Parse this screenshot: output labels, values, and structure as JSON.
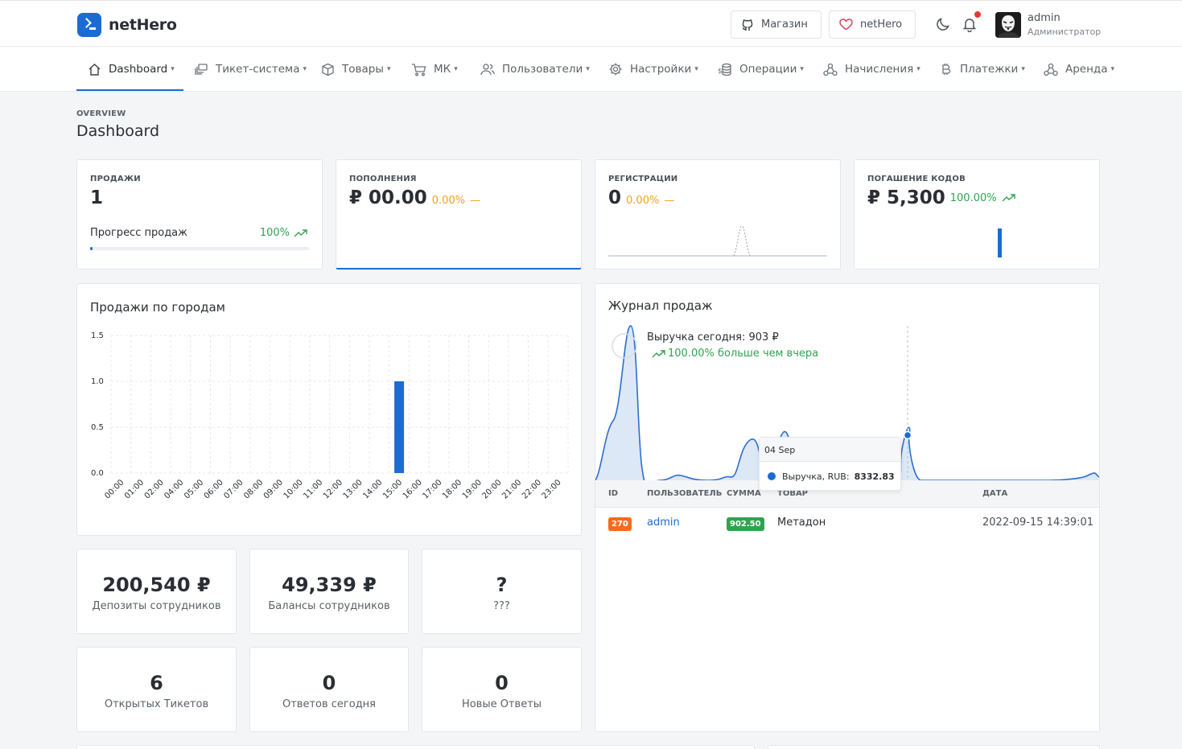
{
  "brand": {
    "name": "netHero"
  },
  "topbar": {
    "shop_label": "Магазин",
    "nethero_label": "netHero",
    "user": {
      "name": "admin",
      "role": "Администратор"
    }
  },
  "nav": {
    "items": [
      {
        "label": "Dashboard",
        "icon": "home-icon"
      },
      {
        "label": "Тикет-система",
        "icon": "tickets-icon"
      },
      {
        "label": "Товары",
        "icon": "box-icon"
      },
      {
        "label": "МК",
        "icon": "cart-icon"
      },
      {
        "label": "Пользователи",
        "icon": "users-icon"
      },
      {
        "label": "Настройки",
        "icon": "gear-icon"
      },
      {
        "label": "Операции",
        "icon": "coins-icon"
      },
      {
        "label": "Начисления",
        "icon": "network-icon"
      },
      {
        "label": "Платежки",
        "icon": "bitcoin-icon"
      },
      {
        "label": "Аренда",
        "icon": "network-icon"
      }
    ]
  },
  "header": {
    "overview": "OVERVIEW",
    "title": "Dashboard"
  },
  "kpis": {
    "sales": {
      "label": "ПРОДАЖИ",
      "value": "1",
      "progress_label": "Прогресс продаж",
      "progress_pct": "100%",
      "progress_fill": 0.01
    },
    "topups": {
      "label": "ПОПОЛНЕНИЯ",
      "value": "₽ 00.00",
      "pct": "0.00%",
      "dash": "—"
    },
    "registrations": {
      "label": "РЕГИСТРАЦИИ",
      "value": "0",
      "pct": "0.00%",
      "dash": "—"
    },
    "codes": {
      "label": "ПОГАШЕНИЕ КОДОВ",
      "value": "₽ 5,300",
      "pct": "100.00%"
    }
  },
  "city_sales": {
    "title": "Продажи по городам",
    "chart_data": {
      "type": "bar",
      "categories": [
        "00:00",
        "01:00",
        "02:00",
        "04:00",
        "05:00",
        "06:00",
        "07:00",
        "08:00",
        "09:00",
        "10:00",
        "11:00",
        "12:00",
        "13:00",
        "14:00",
        "15:00",
        "16:00",
        "17:00",
        "18:00",
        "19:00",
        "20:00",
        "21:00",
        "22:00",
        "23:00"
      ],
      "values": [
        0,
        0,
        0,
        0,
        0,
        0,
        0,
        0,
        0,
        0,
        0,
        0,
        0,
        0,
        1,
        0,
        0,
        0,
        0,
        0,
        0,
        0,
        0
      ],
      "ylim": [
        0,
        1.5
      ],
      "yticks": [
        "1.5",
        "1.0",
        "0.5",
        "0.0"
      ],
      "grid": true,
      "color": "#1c6bd3"
    }
  },
  "sales_log": {
    "title": "Журнал продаж",
    "revenue_today": "Выручка сегодня: 903 ₽",
    "revenue_change": "100.00% больше чем вчера",
    "tooltip": {
      "date": "04 Sep",
      "series": "Выручка, RUB:",
      "value": "8332.83"
    },
    "columns": [
      "ID",
      "ПОЛЬЗОВАТЕЛЬ",
      "СУММА",
      "ТОВАР",
      "ДАТА"
    ],
    "rows": [
      {
        "id": "270",
        "user": "admin",
        "amount": "902.50",
        "product": "Метадон",
        "date": "2022-09-15 14:39:01"
      }
    ]
  },
  "stats": [
    {
      "value": "200,540 ₽",
      "label": "Депозиты сотрудников"
    },
    {
      "value": "49,339 ₽",
      "label": "Балансы сотрудников"
    },
    {
      "value": "?",
      "label": "???"
    },
    {
      "value": "6",
      "label": "Открытых Тикетов"
    },
    {
      "value": "0",
      "label": "Ответов сегодня"
    },
    {
      "value": "0",
      "label": "Новые Ответы"
    }
  ],
  "colors": {
    "accent": "#1c6bd3",
    "positive": "#2ea44f",
    "warning": "#f2a01a",
    "badge_id": "#f36c21"
  }
}
